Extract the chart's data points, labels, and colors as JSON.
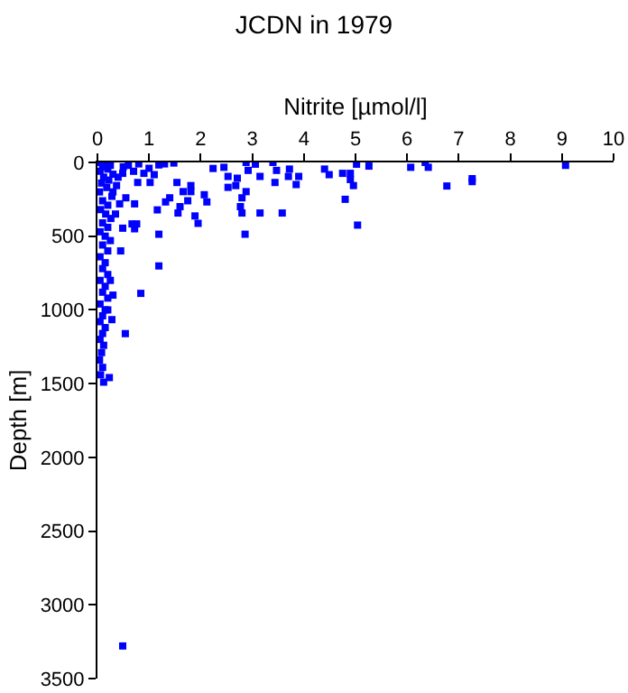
{
  "chart_data": {
    "type": "scatter",
    "title": "JCDN in 1979",
    "xlabel": "Nitrite [µmol/l]",
    "ylabel": "Depth [m]",
    "xlim": [
      0,
      10
    ],
    "xticks": [
      0,
      1,
      2,
      3,
      4,
      5,
      6,
      7,
      8,
      9,
      10
    ],
    "ylim": [
      3500,
      0
    ],
    "yticks": [
      0,
      500,
      1000,
      1500,
      2000,
      2500,
      3000,
      3500
    ],
    "grid": false,
    "marker": "square",
    "series": [
      {
        "color": "#0000ff",
        "x": [
          9.07,
          7.26,
          7.26,
          6.77,
          6.07,
          6.35,
          6.41,
          5.04,
          5.02,
          5.26,
          4.96,
          4.9,
          4.75,
          4.9,
          4.8,
          4.49,
          4.4,
          3.9,
          3.85,
          3.7,
          3.72,
          3.47,
          3.4,
          3.44,
          3.58,
          3.15,
          3.15,
          3.06,
          2.88,
          2.86,
          2.92,
          2.88,
          2.8,
          2.77,
          2.8,
          2.68,
          2.71,
          2.53,
          2.53,
          2.45,
          2.24,
          2.12,
          2.07,
          1.95,
          1.89,
          1.81,
          1.81,
          1.75,
          1.66,
          1.56,
          1.6,
          1.54,
          1.48,
          1.4,
          1.32,
          1.16,
          1.19,
          1.19,
          0.84,
          1.02,
          1.1,
          1.19,
          0.9,
          0.78,
          0.72,
          0.76,
          0.67,
          0.72,
          0.49,
          0.43,
          0.55,
          0.37,
          0.49,
          0.49,
          0.54,
          0.23,
          0.28,
          0.6,
          0.8,
          1.0,
          1.3,
          0.7,
          0.5,
          0.4,
          0.3,
          0.35,
          0.45,
          0.25,
          0.3,
          0.2,
          0.05,
          0.15,
          0.25,
          0.1,
          0.2,
          0.05,
          0.3,
          0.12,
          0.22,
          0.08,
          0.18,
          0.04,
          0.28,
          0.1,
          0.2,
          0.06,
          0.16,
          0.26,
          0.1,
          0.2,
          0.05,
          0.15,
          0.25,
          0.1,
          0.2,
          0.05,
          0.15,
          0.1,
          0.2,
          0.05,
          0.15,
          0.1,
          0.2,
          0.05,
          0.15,
          0.1,
          0.05,
          0.15,
          0.1,
          0.05,
          0.12,
          0.08,
          0.04,
          0.1,
          0.06,
          0.12
        ],
        "values": [
          20,
          110,
          130,
          160,
          33,
          0,
          33,
          425,
          12,
          25,
          157,
          116,
          74,
          74,
          250,
          83,
          45,
          95,
          150,
          95,
          45,
          54,
          0,
          136,
          343,
          343,
          95,
          12,
          0,
          487,
          54,
          198,
          240,
          300,
          343,
          157,
          107,
          95,
          169,
          33,
          41,
          268,
          219,
          413,
          363,
          157,
          198,
          260,
          198,
          343,
          300,
          136,
          4,
          240,
          268,
          322,
          487,
          702,
          888,
          136,
          83,
          17,
          74,
          136,
          281,
          417,
          417,
          450,
          446,
          281,
          240,
          157,
          74,
          3279,
          1161,
          1459,
          1066,
          20,
          10,
          40,
          10,
          60,
          30,
          100,
          200,
          350,
          600,
          800,
          900,
          1000,
          0,
          10,
          20,
          30,
          45,
          60,
          80,
          100,
          120,
          140,
          170,
          200,
          230,
          260,
          290,
          320,
          350,
          380,
          410,
          440,
          470,
          500,
          530,
          560,
          600,
          640,
          680,
          720,
          760,
          800,
          840,
          880,
          920,
          960,
          1000,
          1040,
          1080,
          1120,
          1160,
          1200,
          1240,
          1290,
          1340,
          1390,
          1440,
          1490
        ]
      }
    ]
  }
}
